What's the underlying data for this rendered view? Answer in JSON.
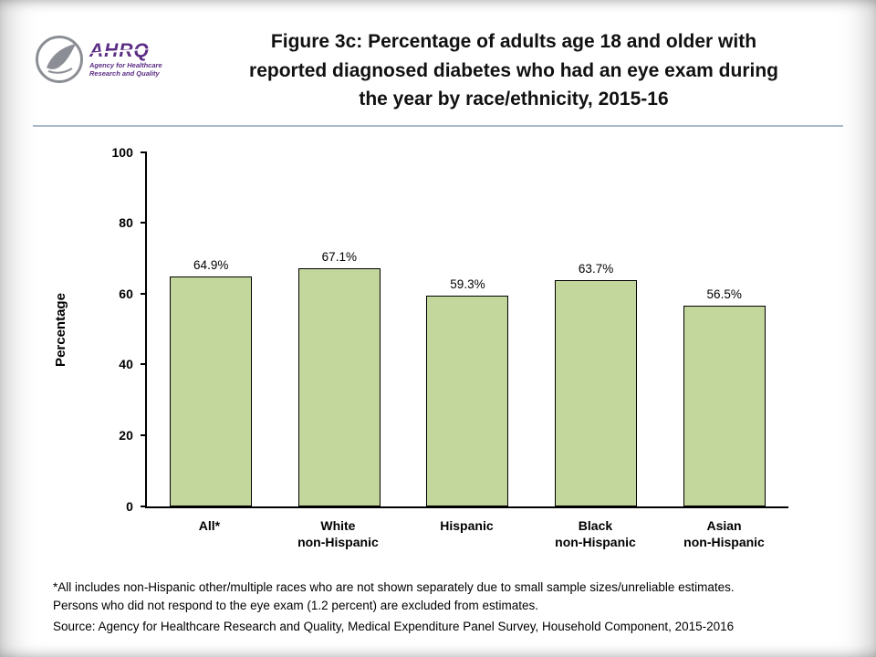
{
  "header": {
    "logo": {
      "ahrq": "AHRQ",
      "tagline_line1": "Agency for Healthcare",
      "tagline_line2": "Research and Quality"
    },
    "title_lines": [
      "Figure 3c: Percentage of adults age 18 and older with",
      "reported diagnosed diabetes who had an eye exam during",
      "the year by race/ethnicity, 2015-16"
    ]
  },
  "chart_data": {
    "type": "bar",
    "title": "Figure 3c: Percentage of adults age 18 and older with reported diagnosed diabetes who had an eye exam during the year by race/ethnicity, 2015-16",
    "categories": [
      "All*",
      "White non-Hispanic",
      "Hispanic",
      "Black non-Hispanic",
      "Asian non-Hispanic"
    ],
    "category_lines": [
      [
        "All*"
      ],
      [
        "White",
        "non-Hispanic"
      ],
      [
        "Hispanic"
      ],
      [
        "Black",
        "non-Hispanic"
      ],
      [
        "Asian",
        "non-Hispanic"
      ]
    ],
    "values": [
      64.9,
      67.1,
      59.3,
      63.7,
      56.5
    ],
    "value_labels": [
      "64.9%",
      "67.1%",
      "59.3%",
      "63.7%",
      "56.5%"
    ],
    "xlabel": "",
    "ylabel": "Percentage",
    "ylim": [
      0,
      100
    ],
    "yticks": [
      0,
      20,
      40,
      60,
      80,
      100
    ],
    "grid": false,
    "legend": "none",
    "bar_color": "#c3d69b",
    "bar_border_color": "#000000"
  },
  "footnotes": {
    "note_lines": [
      "*All includes non-Hispanic other/multiple races who are not shown separately due to small sample sizes/unreliable estimates.",
      "Persons who did not respond to the eye exam (1.2 percent) are excluded from estimates."
    ],
    "source": "Source: Agency for Healthcare Research and Quality, Medical Expenditure Panel Survey, Household Component, 2015-2016"
  },
  "colors": {
    "brand_purple": "#5b2d84",
    "seal_gray": "#8b8e94",
    "divider": "#a9b7c9"
  }
}
